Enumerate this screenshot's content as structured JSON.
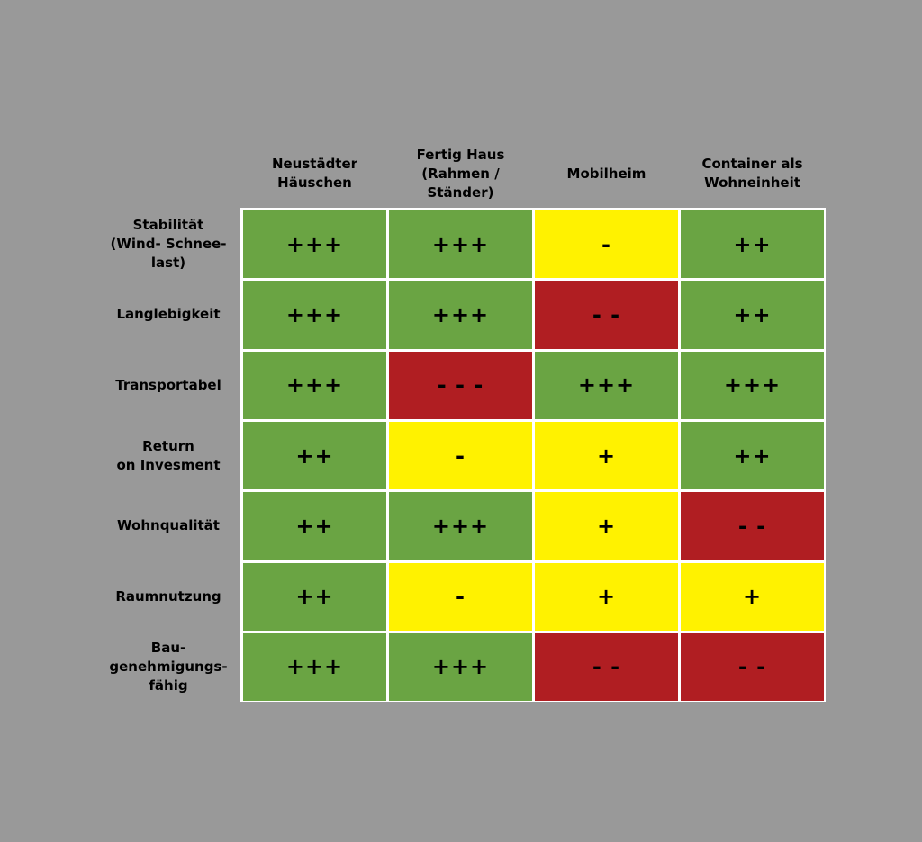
{
  "chart_data": {
    "type": "table",
    "columns": [
      "Neustädter\nHäuschen",
      "Fertig Haus\n(Rahmen /\nStänder)",
      "Mobilheim",
      "Container als\nWohneinheit"
    ],
    "rows": [
      {
        "label": "Stabilität\n(Wind- Schnee-\nlast)",
        "cells": [
          {
            "text": "+++",
            "color": "#6aa443"
          },
          {
            "text": "+++",
            "color": "#6aa443"
          },
          {
            "text": "-",
            "color": "#fff200"
          },
          {
            "text": "++",
            "color": "#6aa443"
          }
        ]
      },
      {
        "label": "Langlebigkeit",
        "cells": [
          {
            "text": "+++",
            "color": "#6aa443"
          },
          {
            "text": "+++",
            "color": "#6aa443"
          },
          {
            "text": "- -",
            "color": "#b01e22"
          },
          {
            "text": "++",
            "color": "#6aa443"
          }
        ]
      },
      {
        "label": "Transportabel",
        "cells": [
          {
            "text": "+++",
            "color": "#6aa443"
          },
          {
            "text": "- - -",
            "color": "#b01e22"
          },
          {
            "text": "+++",
            "color": "#6aa443"
          },
          {
            "text": "+++",
            "color": "#6aa443"
          }
        ]
      },
      {
        "label": "Return\non Invesment",
        "cells": [
          {
            "text": "++",
            "color": "#6aa443"
          },
          {
            "text": "-",
            "color": "#fff200"
          },
          {
            "text": "+",
            "color": "#fff200"
          },
          {
            "text": "++",
            "color": "#6aa443"
          }
        ]
      },
      {
        "label": "Wohnqualität",
        "cells": [
          {
            "text": "++",
            "color": "#6aa443"
          },
          {
            "text": "+++",
            "color": "#6aa443"
          },
          {
            "text": "+",
            "color": "#fff200"
          },
          {
            "text": "- -",
            "color": "#b01e22"
          }
        ]
      },
      {
        "label": "Raumnutzung",
        "cells": [
          {
            "text": "++",
            "color": "#6aa443"
          },
          {
            "text": "-",
            "color": "#fff200"
          },
          {
            "text": "+",
            "color": "#fff200"
          },
          {
            "text": "+",
            "color": "#fff200"
          }
        ]
      },
      {
        "label": "Bau-\ngenehmigungs-\nfähig",
        "cells": [
          {
            "text": "+++",
            "color": "#6aa443"
          },
          {
            "text": "+++",
            "color": "#6aa443"
          },
          {
            "text": "- -",
            "color": "#b01e22"
          },
          {
            "text": "- -",
            "color": "#b01e22"
          }
        ]
      }
    ]
  },
  "colors": {
    "background": "#999999",
    "grid_lines": "#ffffff",
    "positive": "#6aa443",
    "neutral": "#fff200",
    "negative": "#b01e22"
  }
}
